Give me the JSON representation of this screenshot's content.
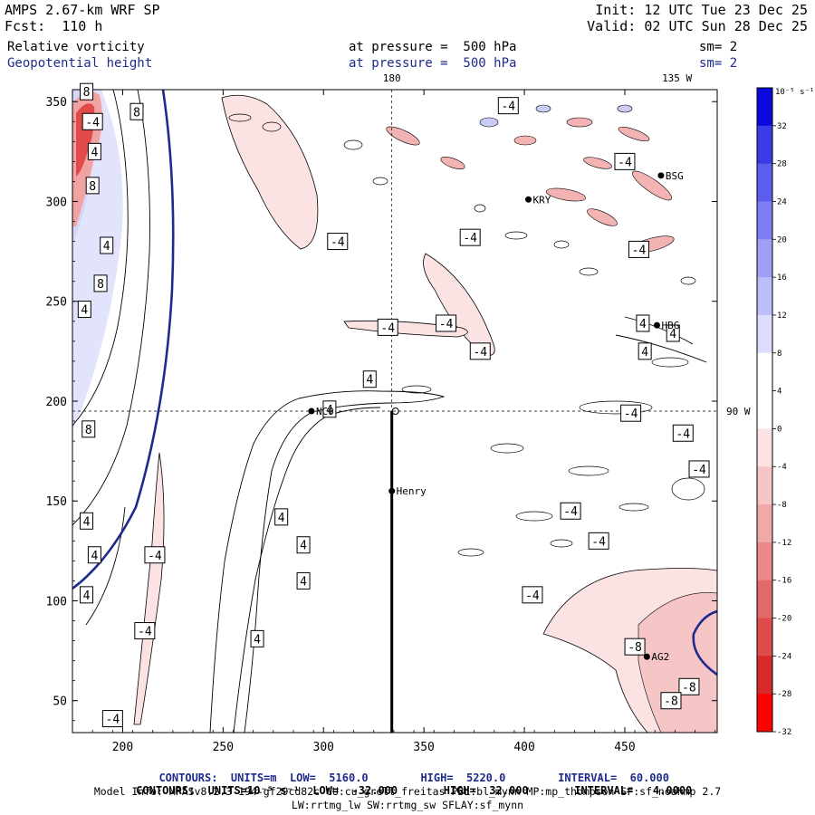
{
  "header": {
    "model": "AMPS 2.67-km WRF SP",
    "forecast": "Fcst:  110 h",
    "init": "Init: 12 UTC Tue 23 Dec 25",
    "valid": "Valid: 02 UTC Sun 28 Dec 25",
    "field1": "Relative vorticity",
    "field1_pressure": "at pressure =  500 hPa",
    "field1_smooth": "sm= 2",
    "field2": "Geopotential height",
    "field2_pressure": "at pressure =  500 hPa",
    "field2_smooth": "sm= 2"
  },
  "colors": {
    "positive_vorticity": "#1f1fd6",
    "negative_vorticity": "#e31a1a",
    "height_contour": "#1e2a8c",
    "footer_blue": "#1e2a8c"
  },
  "chart_data": {
    "type": "contour_map",
    "title": "Relative vorticity and Geopotential height at 500 hPa",
    "x_ticks": [
      200,
      250,
      300,
      350,
      400,
      450
    ],
    "y_ticks": [
      50,
      100,
      150,
      200,
      250,
      300,
      350
    ],
    "xlim": [
      175,
      496
    ],
    "ylim": [
      34,
      356
    ],
    "longitude_labels": [
      {
        "text": "180",
        "x": 334
      },
      {
        "text": "135 W",
        "x": 476
      }
    ],
    "latitude_label": {
      "text": "90 W",
      "y": 195
    },
    "guide_lines": {
      "vertical_x": 334,
      "horizontal_y": 195
    },
    "transect": {
      "x": 334,
      "y_from": 34,
      "y_to": 195
    },
    "stations": [
      {
        "name": "NCO",
        "x": 294,
        "y": 195
      },
      {
        "name": "Henry",
        "x": 334,
        "y": 155
      },
      {
        "name": "KRY",
        "x": 402,
        "y": 301
      },
      {
        "name": "BSG",
        "x": 468,
        "y": 313
      },
      {
        "name": "HBG",
        "x": 466,
        "y": 238
      },
      {
        "name": "AG2",
        "x": 461,
        "y": 72
      }
    ],
    "vorticity_labels": [
      {
        "text": "-4",
        "x": 185,
        "y": 340
      },
      {
        "text": "8",
        "x": 182,
        "y": 355
      },
      {
        "text": "8",
        "x": 207,
        "y": 345
      },
      {
        "text": "4",
        "x": 186,
        "y": 325
      },
      {
        "text": "8",
        "x": 185,
        "y": 308
      },
      {
        "text": "4",
        "x": 192,
        "y": 278
      },
      {
        "text": "8",
        "x": 189,
        "y": 259
      },
      {
        "text": "4",
        "x": 181,
        "y": 246
      },
      {
        "text": "8",
        "x": 183,
        "y": 186
      },
      {
        "text": "4",
        "x": 182,
        "y": 140
      },
      {
        "text": "4",
        "x": 186,
        "y": 123
      },
      {
        "text": "4",
        "x": 182,
        "y": 103
      },
      {
        "text": "-4",
        "x": 216,
        "y": 123
      },
      {
        "text": "-4",
        "x": 211,
        "y": 85
      },
      {
        "text": "-4",
        "x": 195,
        "y": 41
      },
      {
        "text": "-4",
        "x": 307,
        "y": 280
      },
      {
        "text": "-4",
        "x": 373,
        "y": 282
      },
      {
        "text": "-4",
        "x": 332,
        "y": 237
      },
      {
        "text": "-4",
        "x": 361,
        "y": 239
      },
      {
        "text": "-4",
        "x": 378,
        "y": 225
      },
      {
        "text": "4",
        "x": 323,
        "y": 211
      },
      {
        "text": "4",
        "x": 303,
        "y": 196
      },
      {
        "text": "4",
        "x": 279,
        "y": 142
      },
      {
        "text": "4",
        "x": 290,
        "y": 128
      },
      {
        "text": "4",
        "x": 290,
        "y": 110
      },
      {
        "text": "4",
        "x": 267,
        "y": 81
      },
      {
        "text": "-4",
        "x": 392,
        "y": 348
      },
      {
        "text": "-4",
        "x": 450,
        "y": 320
      },
      {
        "text": "-4",
        "x": 457,
        "y": 276
      },
      {
        "text": "4",
        "x": 459,
        "y": 239
      },
      {
        "text": "4",
        "x": 474,
        "y": 234
      },
      {
        "text": "4",
        "x": 460,
        "y": 225
      },
      {
        "text": "-4",
        "x": 453,
        "y": 194
      },
      {
        "text": "-4",
        "x": 479,
        "y": 184
      },
      {
        "text": "-4",
        "x": 487,
        "y": 166
      },
      {
        "text": "-4",
        "x": 423,
        "y": 145
      },
      {
        "text": "-4",
        "x": 437,
        "y": 130
      },
      {
        "text": "-4",
        "x": 404,
        "y": 103
      },
      {
        "text": "-8",
        "x": 455,
        "y": 77
      },
      {
        "text": "-8",
        "x": 482,
        "y": 57
      },
      {
        "text": "-8",
        "x": 473,
        "y": 50
      }
    ],
    "colorbar": {
      "unit_label": "10⁻⁵ s⁻¹",
      "tick_labels": [
        32,
        28,
        24,
        20,
        16,
        12,
        8,
        4,
        0,
        -4,
        -8,
        -12,
        -16,
        -20,
        -24,
        -28,
        -32
      ],
      "colors": [
        "#0a0adc",
        "#3a3ae6",
        "#5c5ced",
        "#7e7ef2",
        "#9f9ff6",
        "#bdbdf9",
        "#dcdcfc",
        "#ffffff",
        "#ffffff",
        "#fbe3e3",
        "#f6c6c6",
        "#f0a8a8",
        "#ea8a8a",
        "#e46a6a",
        "#de4b4b",
        "#d82a2a",
        "#ff0000"
      ]
    }
  },
  "footer": {
    "line1_prefix": "CONTOURS:  UNITS=m  LOW=  5160.0",
    "line1_high": "HIGH=  5220.0",
    "line1_interval": "INTERVAL=  60.000",
    "line2_prefix": "CONTOURS:  UNITS=10⁻⁵ s⁻¹  LOW=  -32.000",
    "line2_high": "HIGH=  32.000",
    "line2_interval": "INTERVAL=   4.0000",
    "model_info": "Model Info: MPASv8.2.3-194-gf29cd82c CU:cu_grell_freitas PBL:bl_mynn MP:mp_thompson SF:sf_noahmp 2.7",
    "model_info2": "LW:rrtmg_lw SW:rrtmg_sw SFLAY:sf_mynn"
  }
}
